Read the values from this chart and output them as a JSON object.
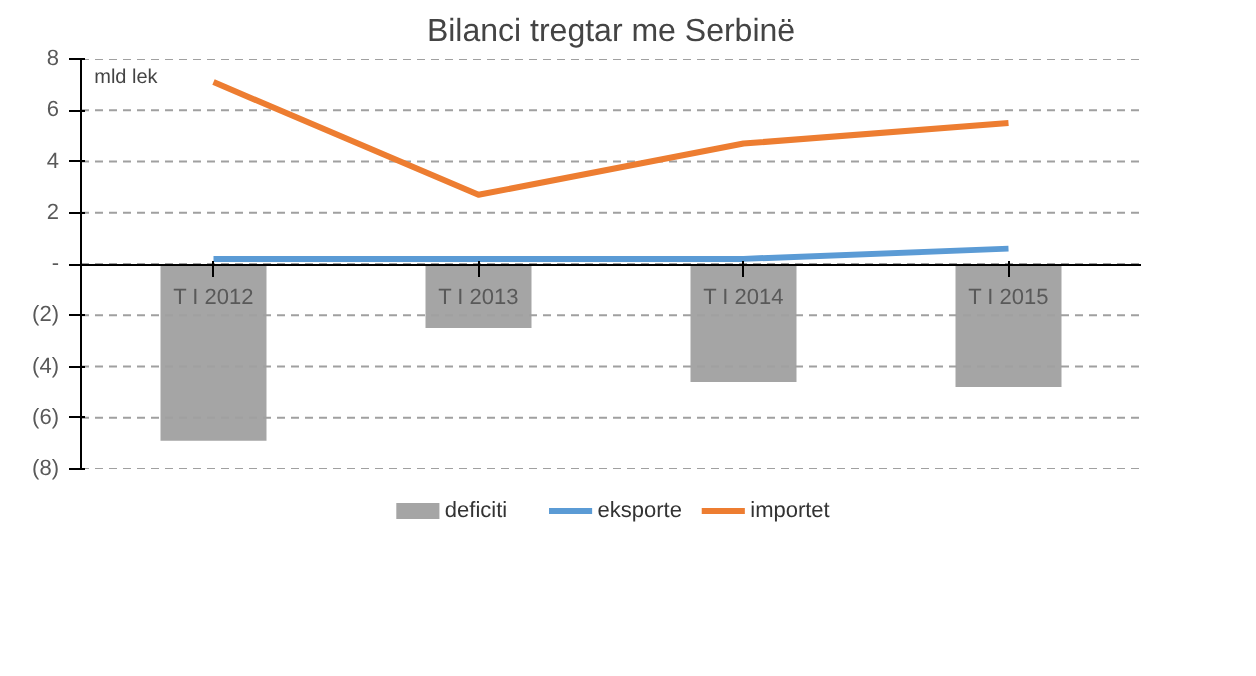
{
  "chart_data": {
    "type": "bar",
    "title": "Bilanci tregtar me Serbinë",
    "categories": [
      "T I 2012",
      "T I 2013",
      "T I 2014",
      "T I 2015"
    ],
    "series": [
      {
        "name": "deficiti",
        "color": "#a5a5a5",
        "values": [
          -6.9,
          -2.5,
          -4.6,
          -4.8
        ]
      },
      {
        "name": "eksporte",
        "type": "line",
        "color": "#5b9bd5",
        "values": [
          0.2,
          0.2,
          0.2,
          0.6
        ]
      },
      {
        "name": "importet",
        "type": "line",
        "color": "#ed7d31",
        "values": [
          7.1,
          2.7,
          4.7,
          5.5
        ]
      }
    ],
    "ylim": [
      -8,
      8
    ],
    "yticks": [
      {
        "value": -8,
        "label": "(8)"
      },
      {
        "value": -6,
        "label": "(6)"
      },
      {
        "value": -4,
        "label": "(4)"
      },
      {
        "value": -2,
        "label": "(2)"
      },
      {
        "value": 0,
        "label": "-"
      },
      2,
      4,
      6,
      8
    ],
    "annotations": [
      "mld lek"
    ],
    "grid": "y",
    "legend": "bottom"
  }
}
